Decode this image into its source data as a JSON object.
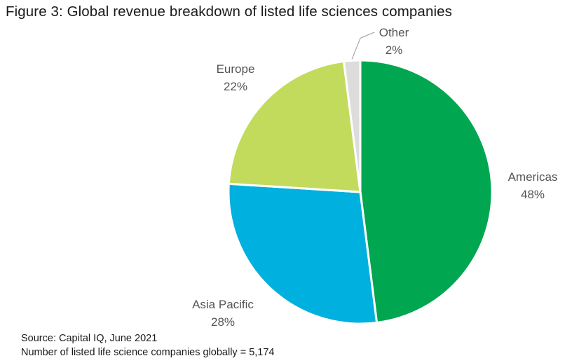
{
  "chart_data": {
    "type": "pie",
    "title": "Figure 3: Global revenue breakdown of listed life sciences companies",
    "unit": "%",
    "slices": [
      {
        "name": "Americas",
        "value": 48,
        "label": "48%",
        "color": "#00a650"
      },
      {
        "name": "Asia Pacific",
        "value": 28,
        "label": "28%",
        "color": "#00b0de"
      },
      {
        "name": "Europe",
        "value": 22,
        "label": "22%",
        "color": "#c2db5c"
      },
      {
        "name": "Other",
        "value": 2,
        "label": "2%",
        "color": "#dcdcdc"
      }
    ]
  },
  "footer": {
    "source": "Source: Capital IQ, June 2021",
    "count_note": "Number of listed life science companies globally = 5,174"
  }
}
